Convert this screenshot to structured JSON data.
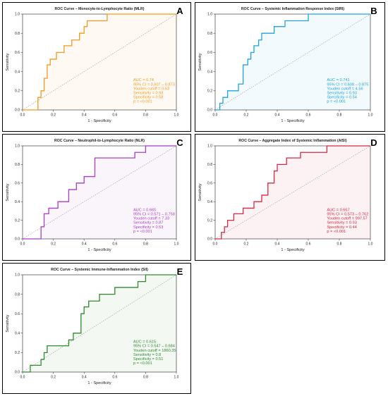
{
  "chart_data": [
    {
      "type": "line",
      "panel_letter": "A",
      "title": "ROC Curve – Monocyte-to-Lymphocyte Ratio (MLR)",
      "xlabel": "1 - Specificity",
      "ylabel": "Sensitivity",
      "xlim": [
        0,
        1
      ],
      "ylim": [
        0,
        1
      ],
      "x_ticks": [
        "0.0",
        "0.2",
        "0.4",
        "0.6",
        "0.8",
        "1.0"
      ],
      "y_ticks": [
        "0.0",
        "0.2",
        "0.4",
        "0.6",
        "0.8",
        "1.0"
      ],
      "color": "#f39a1e",
      "reference_line": "diagonal",
      "series": [
        {
          "x": [
            0,
            0.1,
            0.1,
            0.12,
            0.12,
            0.14,
            0.14,
            0.16,
            0.16,
            0.18,
            0.18,
            0.22,
            0.22,
            0.27,
            0.27,
            0.32,
            0.32,
            0.37,
            0.37,
            0.4,
            0.4,
            0.42,
            0.42,
            0.55,
            0.55,
            1.0
          ],
          "y": [
            0,
            0,
            0.13,
            0.13,
            0.2,
            0.2,
            0.33,
            0.33,
            0.47,
            0.47,
            0.53,
            0.53,
            0.6,
            0.6,
            0.67,
            0.67,
            0.73,
            0.73,
            0.8,
            0.8,
            0.87,
            0.87,
            0.93,
            0.93,
            1.0,
            1.0
          ]
        }
      ],
      "stats": [
        "AUC = 0.74",
        "95% CI = 0.607 – 0.873",
        "Youden cutoff = 0.53",
        "Sensitivity = 0.93",
        "Specificity = 0.58",
        "p = <0.001"
      ]
    },
    {
      "type": "line",
      "panel_letter": "B",
      "title": "ROC Curve – Systemic Inflammation Response Index (SIRI)",
      "xlabel": "1 - Specificity",
      "ylabel": "Sensitivity",
      "xlim": [
        0,
        1
      ],
      "ylim": [
        0,
        1
      ],
      "x_ticks": [
        "0.0",
        "0.2",
        "0.4",
        "0.6",
        "0.8",
        "1.0"
      ],
      "y_ticks": [
        "0.0",
        "0.2",
        "0.4",
        "0.6",
        "0.8",
        "1.0"
      ],
      "color": "#1fa3df",
      "reference_line": "diagonal",
      "series": [
        {
          "x": [
            0,
            0.03,
            0.03,
            0.05,
            0.05,
            0.08,
            0.08,
            0.15,
            0.15,
            0.18,
            0.18,
            0.21,
            0.21,
            0.23,
            0.23,
            0.25,
            0.25,
            0.28,
            0.28,
            0.3,
            0.3,
            0.38,
            0.38,
            0.45,
            0.45,
            0.6,
            0.6,
            1.0
          ],
          "y": [
            0,
            0,
            0.07,
            0.07,
            0.13,
            0.13,
            0.2,
            0.2,
            0.27,
            0.27,
            0.47,
            0.47,
            0.53,
            0.53,
            0.6,
            0.6,
            0.67,
            0.67,
            0.73,
            0.73,
            0.8,
            0.8,
            0.87,
            0.87,
            0.93,
            0.93,
            1.0,
            1.0
          ]
        }
      ],
      "stats": [
        "AUC = 0.741",
        "95% CI = 0.608 – 0.875",
        "Youden cutoff = 4.56",
        "Sensitivity = 0.93",
        "Specificity = 0.54",
        "p = <0.001"
      ]
    },
    {
      "type": "line",
      "panel_letter": "C",
      "title": "ROC Curve – Neutrophil-to-Lymphocyte Ratio (NLR)",
      "xlabel": "1 - Specificity",
      "ylabel": "Sensitivity",
      "xlim": [
        0,
        1
      ],
      "ylim": [
        0,
        1
      ],
      "x_ticks": [
        "0.0",
        "0.2",
        "0.4",
        "0.6",
        "0.8",
        "1.0"
      ],
      "y_ticks": [
        "0.0",
        "0.2",
        "0.4",
        "0.6",
        "0.8",
        "1.0"
      ],
      "color": "#a63fc2",
      "reference_line": "diagonal",
      "series": [
        {
          "x": [
            0,
            0.12,
            0.12,
            0.14,
            0.14,
            0.17,
            0.17,
            0.23,
            0.23,
            0.3,
            0.3,
            0.35,
            0.35,
            0.4,
            0.4,
            0.47,
            0.47,
            0.73,
            0.73,
            0.8,
            0.8,
            1.0
          ],
          "y": [
            0,
            0,
            0.13,
            0.13,
            0.27,
            0.27,
            0.33,
            0.33,
            0.4,
            0.4,
            0.53,
            0.53,
            0.6,
            0.6,
            0.67,
            0.67,
            0.87,
            0.87,
            0.93,
            0.93,
            1.0,
            1.0
          ]
        }
      ],
      "stats": [
        "AUC = 0.665",
        "95% CI = 0.571 – 0.758",
        "Youden cutoff = 7.33",
        "Sensitivity = 0.87",
        "Specificity = 0.53",
        "p = <0.001"
      ]
    },
    {
      "type": "line",
      "panel_letter": "D",
      "title": "ROC Curve – Aggregate Index of Systemic Inflammation (AISI)",
      "xlabel": "1 - Specificity",
      "ylabel": "Sensitivity",
      "xlim": [
        0,
        1
      ],
      "ylim": [
        0,
        1
      ],
      "x_ticks": [
        "0.0",
        "0.2",
        "0.4",
        "0.6",
        "0.8",
        "1.0"
      ],
      "y_ticks": [
        "0.0",
        "0.2",
        "0.4",
        "0.6",
        "0.8",
        "1.0"
      ],
      "color": "#d42a43",
      "reference_line": "diagonal",
      "series": [
        {
          "x": [
            0,
            0.04,
            0.04,
            0.06,
            0.06,
            0.08,
            0.08,
            0.12,
            0.12,
            0.18,
            0.18,
            0.25,
            0.25,
            0.3,
            0.3,
            0.34,
            0.34,
            0.38,
            0.38,
            0.4,
            0.4,
            0.46,
            0.46,
            0.5,
            0.5,
            0.55,
            0.55,
            0.6,
            0.6,
            0.72,
            0.72,
            1.0
          ],
          "y": [
            0,
            0,
            0.07,
            0.07,
            0.13,
            0.13,
            0.2,
            0.2,
            0.27,
            0.27,
            0.33,
            0.33,
            0.4,
            0.4,
            0.47,
            0.47,
            0.6,
            0.6,
            0.73,
            0.73,
            0.8,
            0.8,
            0.87,
            0.87,
            0.87,
            0.87,
            0.93,
            0.93,
            0.93,
            0.93,
            1.0,
            1.0
          ]
        }
      ],
      "stats": [
        "AUC = 0.667",
        "95% CI = 0.573 – 0.762",
        "Youden cutoff = 997.57",
        "Sensitivity = 0.93",
        "Specificity = 0.44",
        "p = <0.001"
      ]
    },
    {
      "type": "line",
      "panel_letter": "E",
      "title": "ROC Curve – Systemic Immune-Inflammation Index (SII)",
      "xlabel": "1 - Specificity",
      "ylabel": "Sensitivity",
      "xlim": [
        0,
        1
      ],
      "ylim": [
        0,
        1
      ],
      "x_ticks": [
        "0.0",
        "0.2",
        "0.4",
        "0.6",
        "0.8",
        "1.0"
      ],
      "y_ticks": [
        "0.0",
        "0.2",
        "0.4",
        "0.6",
        "0.8",
        "1.0"
      ],
      "color": "#2e8b2e",
      "reference_line": "diagonal",
      "series": [
        {
          "x": [
            0,
            0.05,
            0.05,
            0.12,
            0.12,
            0.14,
            0.14,
            0.16,
            0.16,
            0.3,
            0.3,
            0.33,
            0.33,
            0.38,
            0.38,
            0.4,
            0.4,
            0.43,
            0.43,
            0.5,
            0.5,
            0.6,
            0.6,
            0.75,
            0.75,
            0.8,
            0.8,
            1.0
          ],
          "y": [
            0,
            0,
            0.07,
            0.07,
            0.13,
            0.13,
            0.2,
            0.2,
            0.27,
            0.27,
            0.33,
            0.33,
            0.4,
            0.4,
            0.6,
            0.6,
            0.67,
            0.67,
            0.73,
            0.73,
            0.8,
            0.8,
            0.87,
            0.87,
            0.93,
            0.93,
            1.0,
            1.0
          ]
        }
      ],
      "stats": [
        "AUC = 0.615",
        "95% CI = 0.547 – 0.684",
        "Youden cutoff = 1860.35",
        "Sensitivity = 0.8",
        "Specificity = 0.51",
        "p = <0.001"
      ]
    }
  ]
}
